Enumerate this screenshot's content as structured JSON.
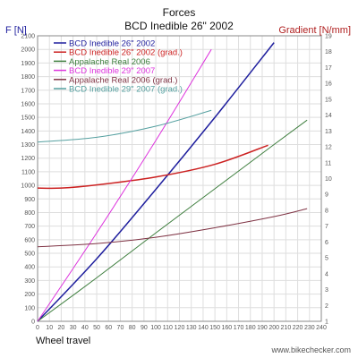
{
  "chart_data": {
    "type": "line",
    "title": "Forces",
    "subtitle": "BCD Inedible 26\" 2002",
    "xlabel": "Wheel travel",
    "ylabel": "F [N]",
    "y2label": "Gradient [N/mm]",
    "xlim": [
      0,
      240
    ],
    "ylim": [
      0,
      2100
    ],
    "y2lim": [
      1,
      19
    ],
    "x_ticks": [
      "0",
      "10",
      "20",
      "30",
      "40",
      "50",
      "60",
      "70",
      "80",
      "90",
      "100",
      "110",
      "120",
      "130",
      "140",
      "150",
      "160",
      "170",
      "180",
      "190",
      "200",
      "210",
      "220",
      "230",
      "240"
    ],
    "y_ticks": [
      "0",
      "100",
      "200",
      "300",
      "400",
      "500",
      "600",
      "700",
      "800",
      "900",
      "1000",
      "1100",
      "1200",
      "1300",
      "1400",
      "1500",
      "1600",
      "1700",
      "1800",
      "1900",
      "2000",
      "2100"
    ],
    "y2_ticks": [
      "1",
      "2",
      "3",
      "4",
      "5",
      "6",
      "7",
      "8",
      "9",
      "10",
      "11",
      "12",
      "13",
      "14",
      "15",
      "16",
      "17",
      "18",
      "19"
    ],
    "grid": true,
    "legend_position": "top-left",
    "series": [
      {
        "name": "BCD Inedible 26\" 2002",
        "axis": "left",
        "color": "#1f1f9e",
        "width": 1.5,
        "x": [
          0,
          50,
          100,
          150,
          200
        ],
        "y": [
          0,
          460,
          970,
          1500,
          2050
        ]
      },
      {
        "name": "BCD Inedible 26\" 2002 (grad.)",
        "axis": "right",
        "color": "#cc2222",
        "width": 1.5,
        "x": [
          0,
          20,
          50,
          100,
          150,
          195
        ],
        "y": [
          9.4,
          9.4,
          9.6,
          10.1,
          10.9,
          12.1
        ]
      },
      {
        "name": "Appalache Real 2006",
        "axis": "left",
        "color": "#3f7f3f",
        "width": 1,
        "x": [
          0,
          50,
          100,
          150,
          200,
          228
        ],
        "y": [
          0,
          320,
          650,
          975,
          1300,
          1480
        ]
      },
      {
        "name": "BCD Inedible 29\" 2007",
        "axis": "left",
        "color": "#dd33dd",
        "width": 1,
        "x": [
          0,
          50,
          100,
          147
        ],
        "y": [
          0,
          650,
          1330,
          2000
        ]
      },
      {
        "name": "Appalache Real 2006 (grad.)",
        "axis": "right",
        "color": "#7f3344",
        "width": 1,
        "x": [
          0,
          50,
          100,
          150,
          200,
          228
        ],
        "y": [
          5.7,
          5.9,
          6.3,
          6.9,
          7.6,
          8.1
        ]
      },
      {
        "name": "BCD Inedible 29\" 2007 (grad.)",
        "axis": "right",
        "color": "#55a0a0",
        "width": 1,
        "x": [
          0,
          50,
          100,
          147
        ],
        "y": [
          12.3,
          12.6,
          13.3,
          14.3
        ]
      }
    ]
  },
  "watermark": "www.bikechecker.com"
}
